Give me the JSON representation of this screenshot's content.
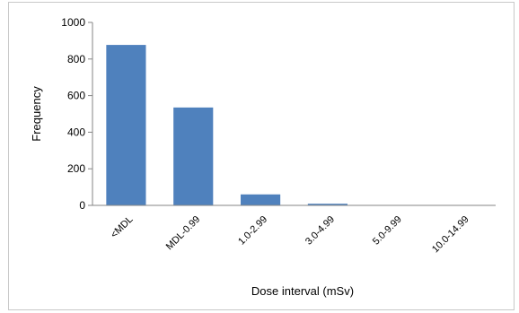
{
  "chart_data": {
    "type": "bar",
    "categories": [
      "<MDL",
      "MDL-0.99",
      "1.0-2.99",
      "3.0-4.99",
      "5.0-9.99",
      "10.0-14.99"
    ],
    "values": [
      877,
      535,
      60,
      9,
      1,
      0
    ],
    "title": "",
    "xlabel": "Dose interval (mSv)",
    "ylabel": "Frequency",
    "ylim": [
      0,
      1000
    ],
    "yticks": [
      0,
      200,
      400,
      600,
      800,
      1000
    ],
    "grid": false,
    "legend": "none",
    "bar_color": "#4f81bd"
  }
}
